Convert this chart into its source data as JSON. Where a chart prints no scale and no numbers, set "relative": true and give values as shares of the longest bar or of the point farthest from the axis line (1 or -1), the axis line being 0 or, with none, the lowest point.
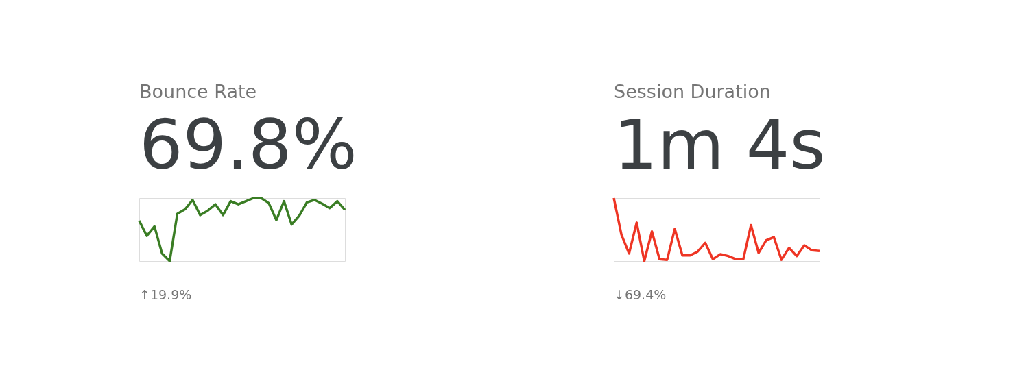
{
  "chart_data": [
    {
      "type": "line",
      "title": "Bounce Rate",
      "subtitle": "69.8%",
      "relative": true,
      "categories": [
        null,
        null,
        null,
        null,
        null,
        null,
        null,
        null,
        null,
        null,
        null,
        null,
        null,
        null,
        null,
        null,
        null,
        null,
        null,
        null,
        null,
        null,
        null,
        null,
        null,
        null,
        null,
        null
      ],
      "marker": "none",
      "line_style": "solid",
      "annotations": [
        "↑19.9%"
      ],
      "series": [
        {
          "color": "#3a7d24",
          "values": [
            0.64,
            0.4,
            0.55,
            0.12,
            0,
            0.75,
            0.82,
            0.97,
            0.73,
            0.8,
            0.9,
            0.73,
            0.95,
            0.9,
            0.95,
            1,
            1,
            0.92,
            0.65,
            0.95,
            0.58,
            0.72,
            0.93,
            0.97,
            0.91,
            0.84,
            0.95,
            0.81
          ]
        }
      ]
    },
    {
      "type": "line",
      "title": "Session Duration",
      "subtitle": "1m 4s",
      "relative": true,
      "categories": [
        null,
        null,
        null,
        null,
        null,
        null,
        null,
        null,
        null,
        null,
        null,
        null,
        null,
        null,
        null,
        null,
        null,
        null,
        null,
        null,
        null,
        null,
        null,
        null,
        null,
        null,
        null,
        null
      ],
      "marker": "none",
      "line_style": "solid",
      "annotations": [
        "↓69.4%"
      ],
      "series": [
        {
          "color": "#ee3524",
          "values": [
            1,
            0.42,
            0.12,
            0.61,
            0,
            0.47,
            0.03,
            0.02,
            0.51,
            0.09,
            0.09,
            0.15,
            0.29,
            0.03,
            0.11,
            0.08,
            0.03,
            0.03,
            0.57,
            0.13,
            0.33,
            0.38,
            0.02,
            0.21,
            0.08,
            0.25,
            0.17,
            0.16
          ]
        }
      ]
    }
  ]
}
